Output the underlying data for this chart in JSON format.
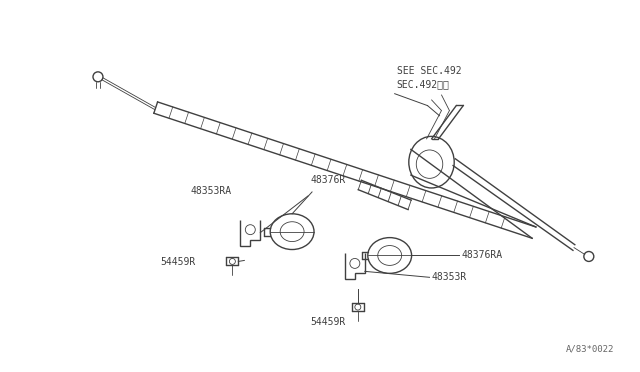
{
  "background_color": "#ffffff",
  "line_color": "#404040",
  "fig_width": 6.4,
  "fig_height": 3.72,
  "dpi": 100,
  "watermark": "A/83*0022",
  "labels": {
    "SEE_SEC": "SEE SEC.492\nSEC.492参图",
    "48376R": "48376R",
    "48353RA": "48353RA",
    "54459R_left": "54459R",
    "48376RA": "48376RA",
    "48353R": "48353R",
    "54459R_bot": "54459R"
  },
  "font_size_label": 7.0,
  "font_size_watermark": 6.5
}
